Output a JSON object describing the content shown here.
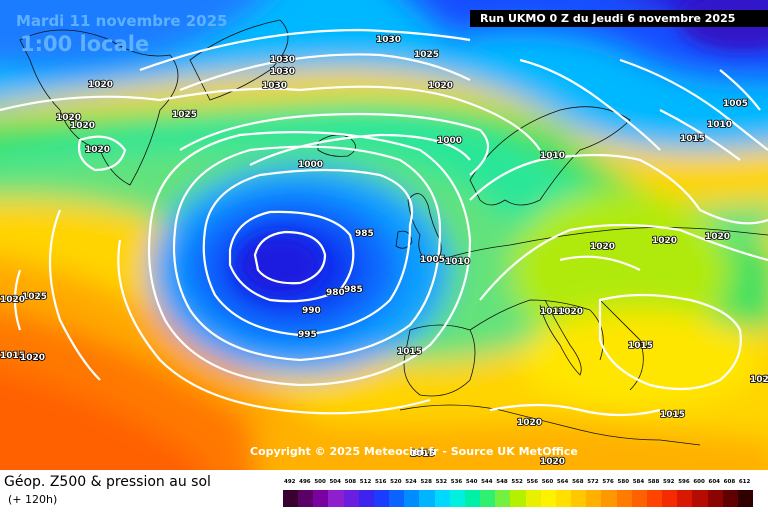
{
  "header": {
    "date_line": "Mardi 11 novembre 2025",
    "time_line": "1:00 locale",
    "run_line": "Run UKMO 0 Z du Jeudi 6 novembre 2025"
  },
  "copyright": "Copyright © 2025 Meteociel.fr - Source UK MetOffice",
  "legend": {
    "title": "Géop. Z500 & pression au sol",
    "subtitle": "(+ 120h)",
    "scale_values": [
      "492",
      "496",
      "500",
      "504",
      "508",
      "512",
      "516",
      "520",
      "524",
      "528",
      "532",
      "536",
      "540",
      "544",
      "548",
      "552",
      "556",
      "560",
      "564",
      "568",
      "572",
      "576",
      "580",
      "584",
      "588",
      "592",
      "596",
      "600",
      "604",
      "608",
      "612"
    ],
    "scale_colors": [
      "#3a0030",
      "#5a0066",
      "#7a00a0",
      "#8e1fcc",
      "#6a1ee0",
      "#3b25ee",
      "#1b3bff",
      "#0a63ff",
      "#008cff",
      "#00b4ff",
      "#00d8ff",
      "#00f0e0",
      "#00f0a8",
      "#30f070",
      "#74f040",
      "#b4f000",
      "#e8f000",
      "#fff200",
      "#ffe000",
      "#ffc800",
      "#ffb000",
      "#ff9800",
      "#ff7c00",
      "#ff6000",
      "#ff4400",
      "#f42a00",
      "#d81800",
      "#b40c00",
      "#8c0400",
      "#600000",
      "#300000"
    ]
  },
  "isobars": [
    {
      "value": "1030",
      "label": "1030"
    },
    {
      "value": "1030",
      "label": "1030"
    },
    {
      "value": "1030",
      "label": "1030"
    },
    {
      "value": "1030",
      "label": "1030"
    },
    {
      "value": "1025",
      "label": "1025"
    },
    {
      "value": "1025",
      "label": "1025"
    },
    {
      "value": "1025",
      "label": "1025"
    },
    {
      "value": "1020",
      "label": "1020"
    },
    {
      "value": "1020",
      "label": "1020"
    },
    {
      "value": "1020",
      "label": "1020"
    },
    {
      "value": "1020",
      "label": "1020"
    },
    {
      "value": "1020",
      "label": "1020"
    },
    {
      "value": "1000",
      "label": "1000"
    },
    {
      "value": "1000",
      "label": "1000"
    },
    {
      "value": "1010",
      "label": "1010"
    },
    {
      "value": "1015",
      "label": "1015"
    },
    {
      "value": "1010",
      "label": "1010"
    },
    {
      "value": "1005",
      "label": "1005"
    },
    {
      "value": "985",
      "label": "985"
    },
    {
      "value": "1005",
      "label": "1005"
    },
    {
      "value": "1010",
      "label": "1010"
    },
    {
      "value": "980",
      "label": "980"
    },
    {
      "value": "985",
      "label": "985"
    },
    {
      "value": "990",
      "label": "990"
    },
    {
      "value": "995",
      "label": "995"
    },
    {
      "value": "1020",
      "label": "1020"
    },
    {
      "value": "1020",
      "label": "1020"
    },
    {
      "value": "1020",
      "label": "1020"
    },
    {
      "value": "1010",
      "label": "1010"
    },
    {
      "value": "1020",
      "label": "1020"
    },
    {
      "value": "1015",
      "label": "1015"
    },
    {
      "value": "1015",
      "label": "1015"
    },
    {
      "value": "1015",
      "label": "1015"
    },
    {
      "value": "1020",
      "label": "1020"
    },
    {
      "value": "1020",
      "label": "1020"
    },
    {
      "value": "1015",
      "label": "1015"
    },
    {
      "value": "1020",
      "label": "1020"
    },
    {
      "value": "1020",
      "label": "1020"
    },
    {
      "value": "1015",
      "label": "1015"
    },
    {
      "value": "1010",
      "label": "1010"
    },
    {
      "value": "1020",
      "label": "1020"
    },
    {
      "value": "1020",
      "label": "1020"
    }
  ]
}
